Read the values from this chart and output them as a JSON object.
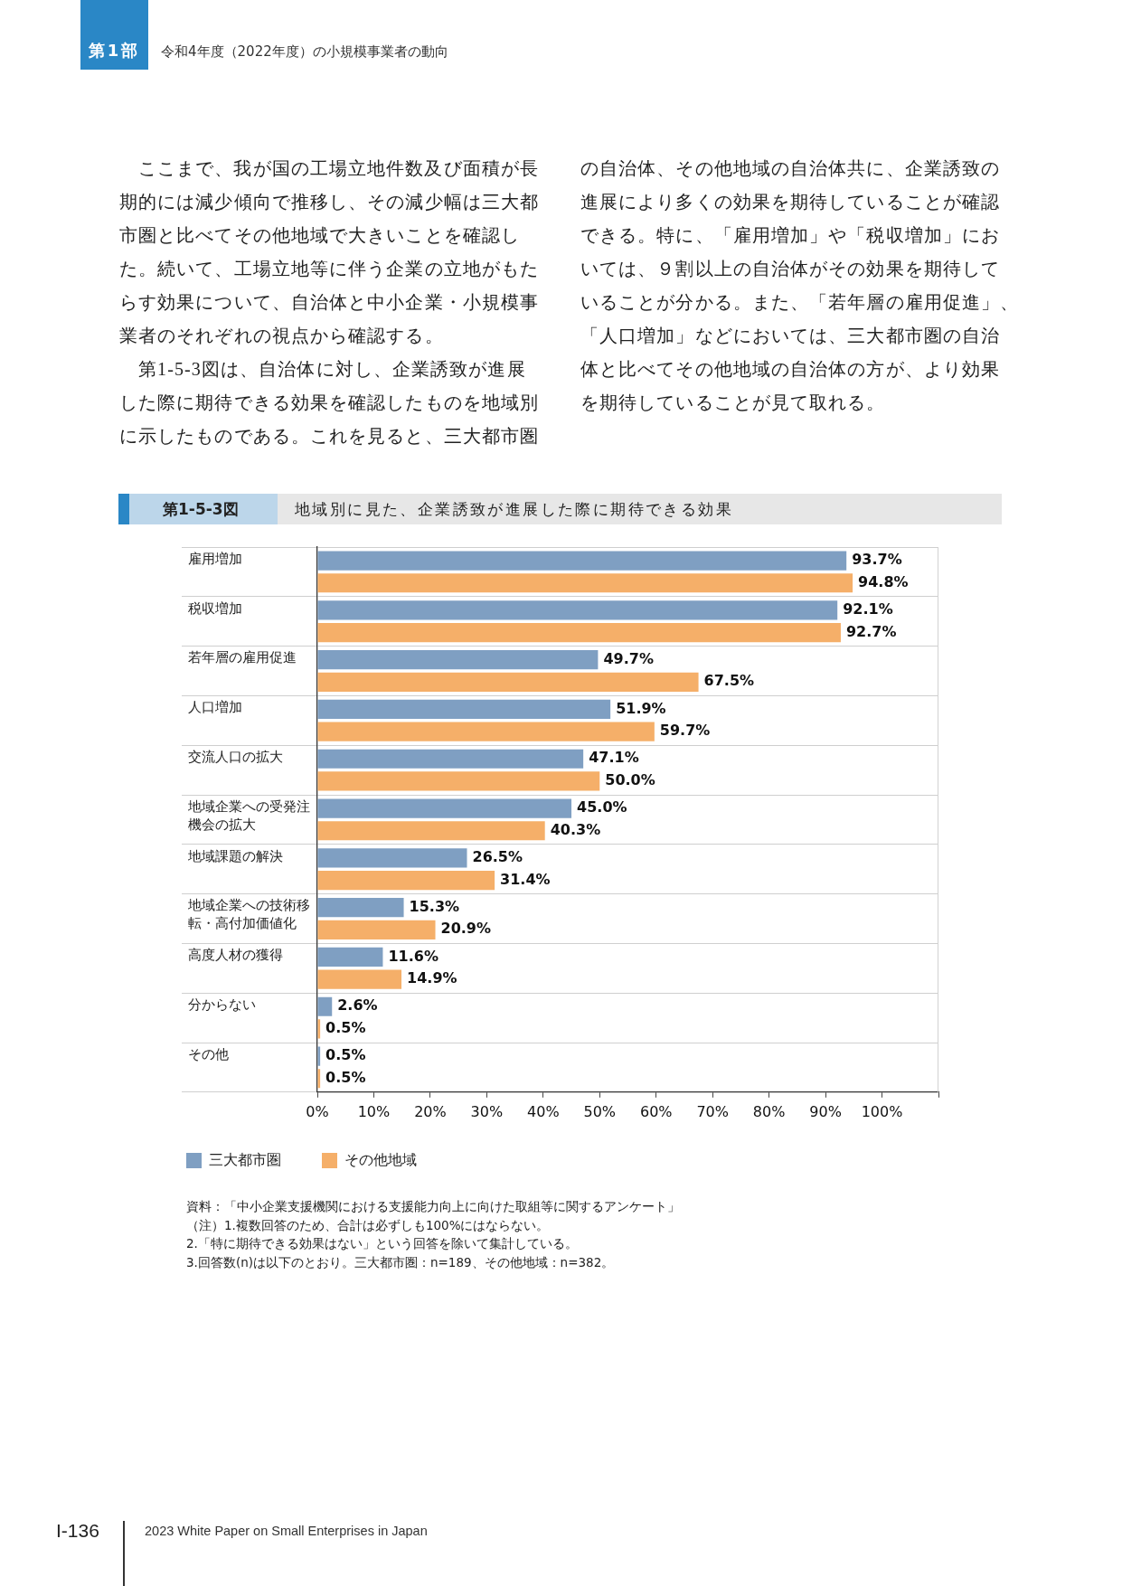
{
  "chart_data": {
    "type": "bar",
    "orientation": "horizontal",
    "title": "地域別に見た、企業誘致が進展した際に期待できる効果",
    "subtitle": "第1-5-3図",
    "categories": [
      "雇用増加",
      "税収増加",
      "若年層の雇用促進",
      "人口増加",
      "交流人口の拡大",
      "地域企業への受発注機会の拡大",
      "地域課題の解決",
      "地域企業への技術移転・高付加価値化",
      "高度人材の獲得",
      "分からない",
      "その他"
    ],
    "series": [
      {
        "name": "三大都市圏",
        "color": "#7f9fc2",
        "values": [
          93.7,
          92.1,
          49.7,
          51.9,
          47.1,
          45.0,
          26.5,
          15.3,
          11.6,
          2.6,
          0.5
        ],
        "value_labels": [
          "93.7%",
          "92.1%",
          "49.7%",
          "51.9%",
          "47.1%",
          "45.0%",
          "26.5%",
          "15.3%",
          "11.6%",
          "2.6%",
          "0.5%"
        ]
      },
      {
        "name": "その他地域",
        "color": "#f5af69",
        "values": [
          94.8,
          92.7,
          67.5,
          59.7,
          50.0,
          40.3,
          31.4,
          20.9,
          14.9,
          0.5,
          0.5
        ],
        "value_labels": [
          "94.8%",
          "92.7%",
          "67.5%",
          "59.7%",
          "50.0%",
          "40.3%",
          "31.4%",
          "20.9%",
          "14.9%",
          "0.5%",
          "0.5%"
        ]
      }
    ],
    "xlim": [
      0,
      110
    ],
    "xticks": [
      {
        "value": 0,
        "label": "0%"
      },
      {
        "value": 10,
        "label": "10%"
      },
      {
        "value": 20,
        "label": "20%"
      },
      {
        "value": 30,
        "label": "30%"
      },
      {
        "value": 40,
        "label": "40%"
      },
      {
        "value": 50,
        "label": "50%"
      },
      {
        "value": 60,
        "label": "60%"
      },
      {
        "value": 70,
        "label": "70%"
      },
      {
        "value": 80,
        "label": "80%"
      },
      {
        "value": 90,
        "label": "90%"
      },
      {
        "value": 100,
        "label": "100%"
      },
      {
        "value": 110,
        "label": null
      }
    ],
    "grid": "y",
    "legend": "bottom left",
    "annotations": [
      "第1部",
      "令和4年度（2022年度）の小規模事業者の動向",
      "ここまで、我が国の工場立地件数及び面積が長期的には減少傾向で推移し、その減少幅は三大都市圏と比べてその他地域で大きいことを確認した。続いて、工場立地等に伴う企業の立地がもたらす効果について、自治体と中小企業・小規模事業者のそれぞれの視点から確認する。",
      "第1-5-3図は、自治体に対し、企業誘致が進展した際に期待できる効果を確認したものを地域別に示したものである。これを見ると、三大都市圏",
      "の自治体、その他地域の自治体共に、企業誘致の進展により多くの効果を期待していることが確認できる。特に、「雇用増加」や「税収増加」においては、９割以上の自治体がその効果を期待していることが分かる。また、「若年層の雇用促進」、「人口増加」などにおいては、三大都市圏の自治体と比べてその他地域の自治体の方が、より効果を期待していることが見て取れる。",
      "資料：「中小企業支援機関における支援能力向上に向けた取組等に関するアンケート」",
      "（注）1.複数回答のため、合計は必ずしも100%にはならない。",
      "2.「特に期待できる効果はない」という回答を除いて集計している。",
      "3.回答数(n)は以下のとおり。三大都市圏：n=189、その他地域：n=382。",
      "I-136",
      "2023 White Paper on Small Enterprises in Japan"
    ]
  }
}
